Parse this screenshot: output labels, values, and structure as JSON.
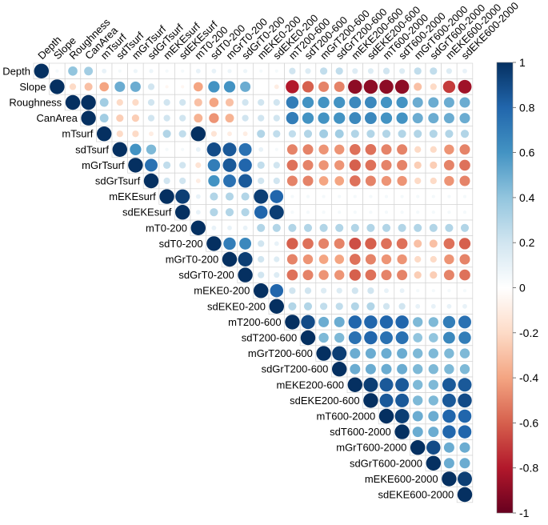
{
  "chart_data": {
    "type": "heatmap",
    "title": "",
    "variables": [
      "Depth",
      "Slope",
      "Roughness",
      "CanArea",
      "mTsurf",
      "sdTsurf",
      "mGrTsurf",
      "sdGrTsurf",
      "mEKEsurf",
      "sdEKEsurf",
      "mT0-200",
      "sdT0-200",
      "mGrT0-200",
      "sdGrT0-200",
      "mEKE0-200",
      "sdEKE0-200",
      "mT200-600",
      "sdT200-600",
      "mGrT200-600",
      "sdGrT200-600",
      "mEKE200-600",
      "sdEKE200-600",
      "mT600-2000",
      "sdT600-2000",
      "mGrT600-2000",
      "sdGrT600-2000",
      "mEKE600-2000",
      "sdEKE600-2000"
    ],
    "matrix_shape": "upper",
    "colorbar": {
      "range": [
        -1,
        1
      ],
      "ticks": [
        1,
        0.8,
        0.6,
        0.4,
        0.2,
        0,
        -0.2,
        -0.4,
        -0.6,
        -0.8,
        -1
      ],
      "tick_labels": [
        "1",
        "0.8",
        "0.6",
        "0.4",
        "0.2",
        "0",
        "-0.2",
        "-0.4",
        "-0.6",
        "-0.8",
        "-1"
      ],
      "colors": {
        "neg": "#67001f",
        "mid": "#ffffff",
        "pos": "#053061"
      }
    },
    "rows": [
      [
        1,
        0.05,
        0.4,
        0.35,
        0.1,
        0.05,
        0.08,
        0.08,
        0.05,
        0.05,
        0.1,
        0.1,
        0.08,
        0.08,
        0.05,
        0.05,
        0.2,
        0.15,
        0.25,
        0.25,
        0.15,
        0.15,
        0.2,
        0.15,
        0.25,
        0.25,
        0.15,
        0.1
      ],
      [
        1,
        -0.2,
        -0.3,
        -0.4,
        0.5,
        0.5,
        0.2,
        -0.05,
        -0.05,
        -0.4,
        0.6,
        0.6,
        0.5,
        0,
        -0.1,
        -0.8,
        -0.6,
        -0.5,
        -0.5,
        -0.9,
        -0.9,
        -0.9,
        -0.9,
        -0.3,
        -0.2,
        -0.7,
        -0.85
      ],
      [
        1,
        1,
        0.35,
        -0.2,
        -0.2,
        0.2,
        0.2,
        0.2,
        -0.3,
        -0.4,
        -0.3,
        0.2,
        0.2,
        0.2,
        0.7,
        0.6,
        0.6,
        0.6,
        0.65,
        0.65,
        0.6,
        0.6,
        0.5,
        0.5,
        0.5,
        0.5
      ],
      [
        1,
        0.35,
        -0.25,
        -0.25,
        0.2,
        0.2,
        0.2,
        -0.35,
        -0.45,
        -0.35,
        0.2,
        0.2,
        0.2,
        0.7,
        0.6,
        0.6,
        0.6,
        0.65,
        0.65,
        0.6,
        0.6,
        0.5,
        0.5,
        0.5,
        0.5
      ],
      [
        1,
        -0.2,
        -0.2,
        -0.1,
        0.3,
        0.25,
        1,
        -0.15,
        -0.1,
        -0.1,
        0.3,
        0.25,
        0.25,
        0.3,
        0.35,
        0.35,
        0.3,
        0.3,
        0.3,
        0.3,
        0.3,
        0.3,
        0.3,
        0.3
      ],
      [
        1,
        0.6,
        0.45,
        0.05,
        0.05,
        0.1,
        0.9,
        0.85,
        0.75,
        0.1,
        0.05,
        -0.5,
        -0.5,
        -0.45,
        -0.45,
        -0.55,
        -0.55,
        -0.5,
        -0.5,
        -0.2,
        -0.2,
        -0.45,
        -0.5
      ],
      [
        1,
        0.75,
        0.25,
        0.2,
        -0.15,
        0.7,
        0.85,
        0.8,
        0.25,
        0.2,
        -0.55,
        -0.5,
        -0.45,
        -0.45,
        -0.6,
        -0.55,
        -0.5,
        -0.5,
        -0.25,
        -0.25,
        -0.5,
        -0.55
      ],
      [
        1,
        0.2,
        0.2,
        -0.1,
        0.6,
        0.75,
        0.85,
        0.2,
        0.2,
        -0.5,
        -0.5,
        -0.4,
        -0.4,
        -0.55,
        -0.5,
        -0.45,
        -0.45,
        -0.2,
        -0.2,
        -0.45,
        -0.5
      ],
      [
        1,
        0.95,
        0.1,
        0.3,
        0.3,
        0.3,
        0.95,
        0.8,
        0.05,
        0.05,
        0.05,
        0.05,
        0.05,
        0.05,
        0.05,
        0.05,
        0.05,
        0.05,
        0.05,
        0.05
      ],
      [
        1,
        0.1,
        0.3,
        0.3,
        0.3,
        0.8,
        0.95,
        0.05,
        0.05,
        0.05,
        0.05,
        0.05,
        0.05,
        0.05,
        0.05,
        0.05,
        0.05,
        0.05,
        0.05
      ],
      [
        1,
        0.1,
        0.1,
        0.1,
        0.3,
        0.3,
        0.3,
        0.3,
        0.3,
        0.3,
        0.3,
        0.3,
        0.3,
        0.3,
        0.3,
        0.3,
        0.3,
        0.3
      ],
      [
        1,
        0.7,
        0.65,
        0.2,
        0.1,
        -0.6,
        -0.55,
        -0.5,
        -0.5,
        -0.65,
        -0.6,
        -0.55,
        -0.55,
        -0.3,
        -0.3,
        -0.55,
        -0.6
      ],
      [
        1,
        0.95,
        0.2,
        0.15,
        -0.5,
        -0.45,
        -0.4,
        -0.4,
        -0.55,
        -0.5,
        -0.45,
        -0.45,
        -0.2,
        -0.2,
        -0.45,
        -0.5
      ],
      [
        1,
        0.2,
        0.15,
        -0.55,
        -0.5,
        -0.45,
        -0.45,
        -0.6,
        -0.55,
        -0.5,
        -0.5,
        -0.25,
        -0.25,
        -0.5,
        -0.55
      ],
      [
        1,
        0.8,
        0.2,
        0.2,
        0.15,
        0.15,
        0.2,
        0.2,
        0.1,
        0.1,
        0.05,
        0.05,
        0.05,
        0.05
      ],
      [
        1,
        0.3,
        0.3,
        0.25,
        0.25,
        0.3,
        0.3,
        0.2,
        0.2,
        0.1,
        0.1,
        0.1,
        0.1
      ],
      [
        1,
        0.9,
        0.5,
        0.5,
        0.8,
        0.8,
        0.8,
        0.8,
        0.45,
        0.45,
        0.7,
        0.75
      ],
      [
        1,
        0.45,
        0.45,
        0.75,
        0.8,
        0.75,
        0.75,
        0.4,
        0.4,
        0.65,
        0.7
      ],
      [
        1,
        0.95,
        0.5,
        0.5,
        0.5,
        0.5,
        0.45,
        0.45,
        0.45,
        0.45
      ],
      [
        1,
        0.5,
        0.5,
        0.5,
        0.5,
        0.45,
        0.45,
        0.45,
        0.45
      ],
      [
        1,
        0.95,
        0.85,
        0.85,
        0.45,
        0.45,
        0.85,
        0.85
      ],
      [
        1,
        0.85,
        0.85,
        0.45,
        0.45,
        0.85,
        0.9
      ],
      [
        1,
        0.95,
        0.5,
        0.5,
        0.8,
        0.8
      ],
      [
        1,
        0.5,
        0.5,
        0.8,
        0.8
      ],
      [
        1,
        0.9,
        0.5,
        0.5
      ],
      [
        1,
        0.5,
        0.5
      ],
      [
        1,
        0.95
      ],
      [
        1
      ]
    ]
  }
}
